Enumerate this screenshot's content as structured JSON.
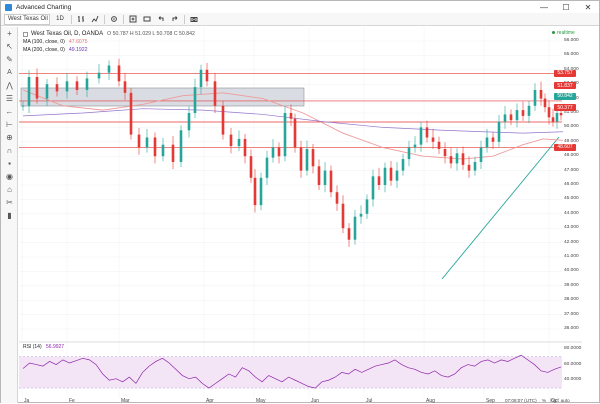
{
  "window": {
    "title": "Advanced Charting",
    "controls": {
      "minimize": "—",
      "maximize": "☐",
      "close": "✕"
    }
  },
  "toolbar": {
    "symbol": "West Texas Oil",
    "interval": "1D",
    "icons": [
      "cursor-icon",
      "settings-icon",
      "add-icon",
      "compare-icon",
      "undo-icon",
      "redo-icon",
      "camera-icon"
    ]
  },
  "sidebar": {
    "tools": [
      "crosshair-icon",
      "cursor-icon",
      "pencil-icon",
      "text-icon",
      "pattern-icon",
      "fib-icon",
      "arrow-icon",
      "measure-icon",
      "zoom-icon",
      "magnet-icon",
      "lock-icon",
      "eye-icon",
      "tag-icon",
      "delete-icon"
    ]
  },
  "legend": {
    "title": "West Texas Oil, D, OANDA",
    "ohlc": "O 50.787  H 51.029  L 50.708  C 50.842",
    "ma100_label": "MA (100, close, 0)",
    "ma100_value": "47.6075",
    "ma200_label": "MA (200, close, 0)",
    "ma200_value": "49.1922",
    "rsi_label": "RSI (14)",
    "rsi_value": "56.9927",
    "realtime": "realtime"
  },
  "price_tags": [
    {
      "text": "53.757",
      "color": "#e53935"
    },
    {
      "text": "51.837",
      "color": "#e53935"
    },
    {
      "text": "50.842",
      "color": "#26a69a"
    },
    {
      "text": "50.377",
      "color": "#e53935"
    },
    {
      "text": "48.607",
      "color": "#e53935"
    }
  ],
  "y_axis": [
    "56.000",
    "55.000",
    "54.000",
    "53.000",
    "52.000",
    "51.000",
    "50.000",
    "49.000",
    "48.000",
    "47.000",
    "46.000",
    "45.000",
    "44.000",
    "43.000",
    "42.000",
    "41.000",
    "40.000",
    "39.000",
    "38.000",
    "37.000",
    "36.000"
  ],
  "rsi_axis": [
    "80.0000",
    "60.0000",
    "40.0000"
  ],
  "x_axis": [
    "Ja",
    "Fe",
    "Mar",
    "Apr",
    "May",
    "Jun",
    "Jul",
    "Aug",
    "Sep",
    "Oct"
  ],
  "footer": {
    "time": "07:08:07 (UTC)",
    "scale_pct": "%",
    "scale_log": "log",
    "scale_auto": "auto"
  },
  "colors": {
    "up": "#26a69a",
    "down": "#e53935",
    "ma100": "#ef9a9a",
    "ma200": "#7e57c2",
    "rsi": "#8e24aa",
    "rsi_fill": "#f3e5f5",
    "trend": "#26a69a"
  }
}
